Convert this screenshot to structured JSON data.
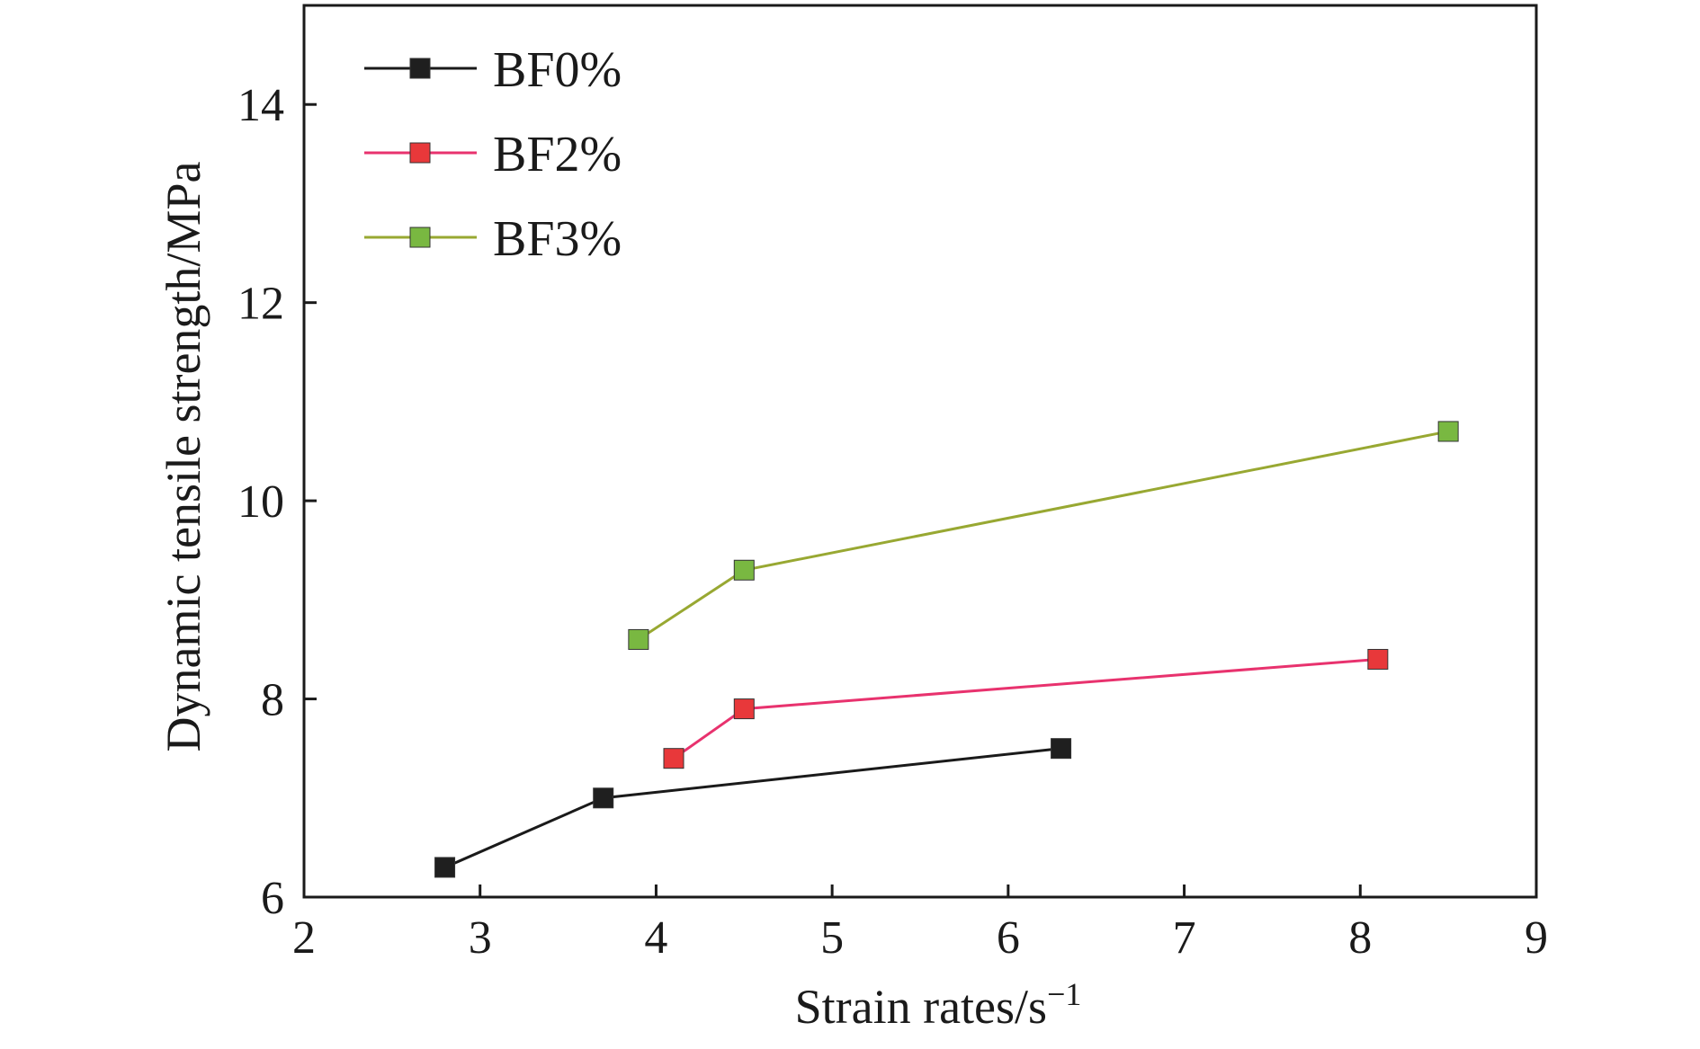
{
  "chart_data": {
    "type": "line",
    "xlabel": "Strain rates/s",
    "xlabel_superscript": "−1",
    "ylabel": "Dynamic tensile strength/MPa",
    "xlim": [
      2,
      9
    ],
    "ylim": [
      6,
      15
    ],
    "xticks": [
      "2",
      "3",
      "4",
      "5",
      "6",
      "7",
      "8",
      "9"
    ],
    "yticks": [
      "6",
      "8",
      "10",
      "12",
      "14"
    ],
    "grid": false,
    "legend_position": "top-left",
    "series": [
      {
        "name": "BF0%",
        "color": "#1a1a1a",
        "marker_color": "#1f1f1f",
        "marker": "square",
        "x": [
          2.8,
          3.7,
          6.3
        ],
        "y": [
          6.3,
          7.0,
          7.5
        ]
      },
      {
        "name": "BF2%",
        "color": "#e8326e",
        "marker_color": "#e8383a",
        "marker": "square",
        "x": [
          4.1,
          4.5,
          8.1
        ],
        "y": [
          7.4,
          7.9,
          8.4
        ]
      },
      {
        "name": "BF3%",
        "color": "#98a832",
        "marker_color": "#79b841",
        "marker": "square",
        "x": [
          3.9,
          4.5,
          8.5
        ],
        "y": [
          8.6,
          9.3,
          10.7
        ]
      }
    ]
  }
}
